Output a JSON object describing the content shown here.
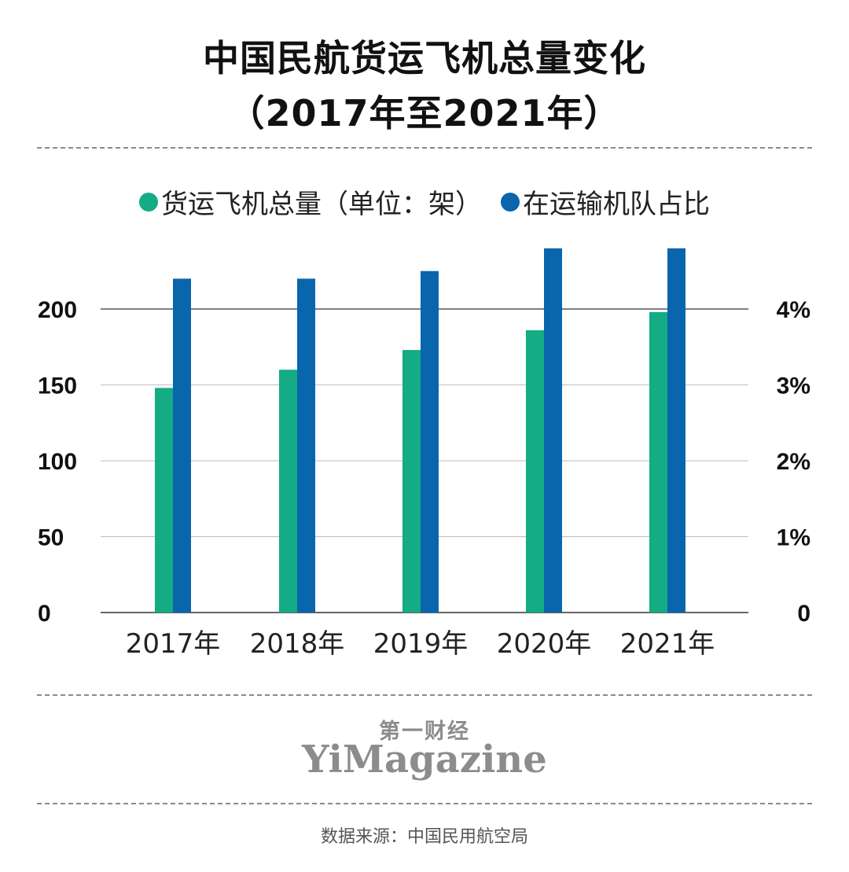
{
  "header": {
    "title_line1": "中国民航货运飞机总量变化",
    "title_line2": "（2017年至2021年）"
  },
  "legend": {
    "items": [
      {
        "label": "货运飞机总量（单位：架）",
        "color": "#13ac84"
      },
      {
        "label": "在运输机队占比",
        "color": "#0965ac"
      }
    ]
  },
  "chart_data": {
    "type": "bar",
    "title": "中国民航货运飞机总量变化（2017年至2021年）",
    "categories": [
      "2017年",
      "2018年",
      "2019年",
      "2020年",
      "2021年"
    ],
    "series": [
      {
        "name": "货运飞机总量（单位：架）",
        "axis": "left",
        "color": "#13ac84",
        "values": [
          148,
          160,
          173,
          186,
          198
        ]
      },
      {
        "name": "在运输机队占比",
        "axis": "right",
        "color": "#0965ac",
        "unit": "%",
        "values": [
          4.4,
          4.4,
          4.5,
          4.8,
          4.8
        ]
      }
    ],
    "left_axis": {
      "ylim": [
        0,
        240
      ],
      "ticks": [
        0,
        50,
        100,
        150,
        200
      ],
      "tick_labels": [
        "0",
        "50",
        "100",
        "150",
        "200"
      ]
    },
    "right_axis": {
      "ylim": [
        0,
        4.8
      ],
      "ticks": [
        0,
        1,
        2,
        3,
        4
      ],
      "tick_labels": [
        "0",
        "1%",
        "2%",
        "3%",
        "4%"
      ]
    },
    "grid": true,
    "legend_position": "top-center"
  },
  "brand": {
    "cn": "第一财经",
    "en": "YiMagazine"
  },
  "footer": {
    "source": "数据来源：中国民用航空局"
  }
}
